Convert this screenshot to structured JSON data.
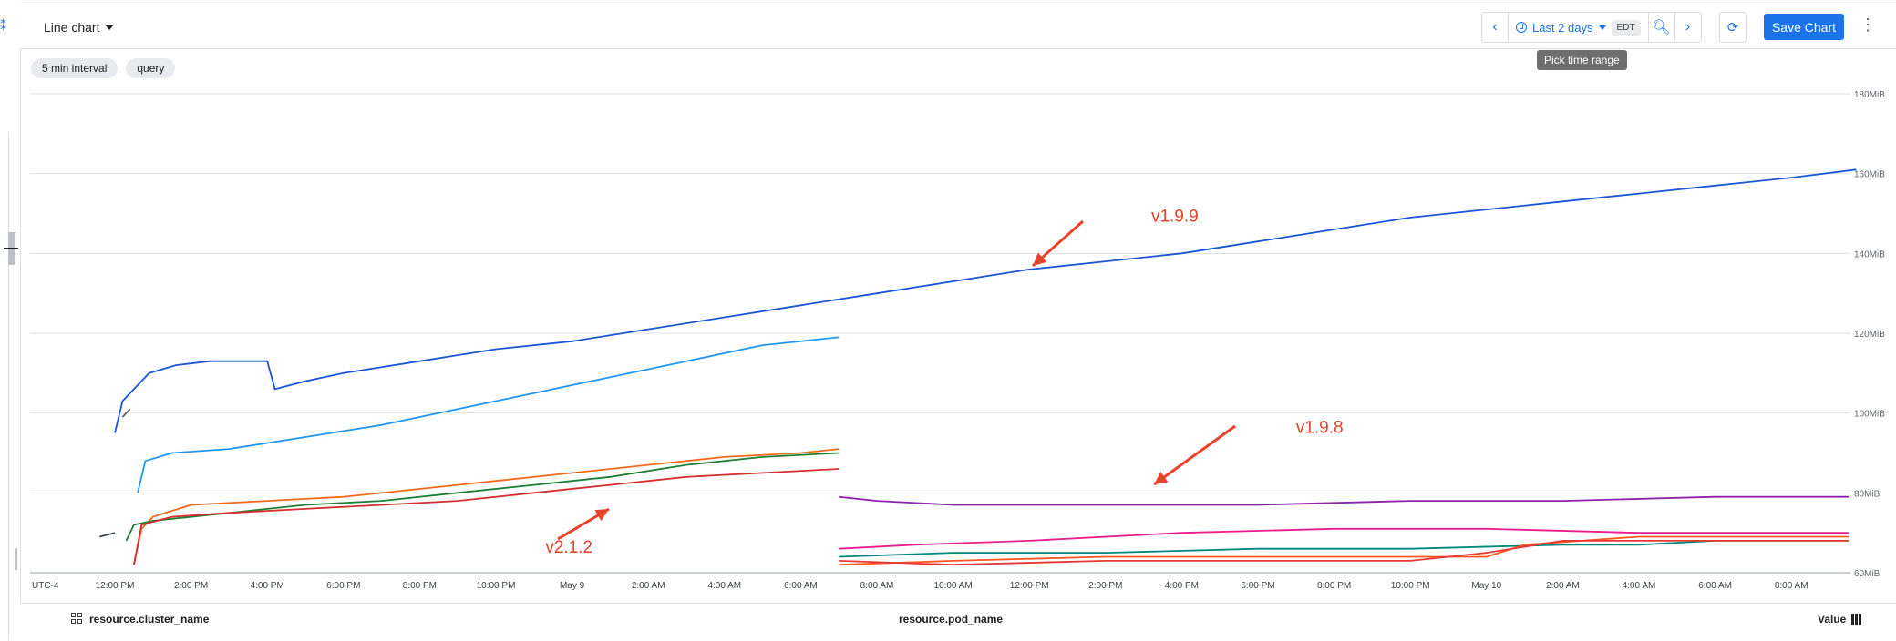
{
  "toolbar": {
    "chart_type": "Line chart",
    "time_range": "Last 2 days",
    "timezone": "EDT",
    "save_label": "Save Chart",
    "tooltip": "Pick time range"
  },
  "chips": [
    "5 min interval",
    "query"
  ],
  "footer": {
    "col1": "resource.cluster_name",
    "col2": "resource.pod_name",
    "col3": "Value"
  },
  "chart_data": {
    "type": "line",
    "x_axis_labels": [
      "UTC-4",
      "12:00 PM",
      "2:00 PM",
      "4:00 PM",
      "6:00 PM",
      "8:00 PM",
      "10:00 PM",
      "May 9",
      "2:00 AM",
      "4:00 AM",
      "6:00 AM",
      "8:00 AM",
      "10:00 AM",
      "12:00 PM",
      "2:00 PM",
      "4:00 PM",
      "6:00 PM",
      "8:00 PM",
      "10:00 PM",
      "May 10",
      "2:00 AM",
      "4:00 AM",
      "6:00 AM",
      "8:00 AM"
    ],
    "y_ticks": [
      "60MiB",
      "80MiB",
      "100MiB",
      "120MiB",
      "140MiB",
      "160MiB",
      "180MiB"
    ],
    "y_unit": "MiB",
    "ylim": [
      60,
      180
    ],
    "x_hours_range": [
      -0.7,
      45.8
    ],
    "grid": true,
    "series": [
      {
        "color": "#1a56d6",
        "points": [
          [
            0,
            95
          ],
          [
            0.2,
            103
          ],
          [
            0.5,
            106
          ],
          [
            0.9,
            110
          ],
          [
            1.6,
            112
          ],
          [
            2.5,
            113
          ],
          [
            3.5,
            113
          ],
          [
            4.0,
            113
          ],
          [
            4.2,
            106
          ],
          [
            5,
            108
          ],
          [
            6,
            110
          ],
          [
            8,
            113
          ],
          [
            10,
            116
          ],
          [
            12,
            118
          ],
          [
            14,
            121
          ],
          [
            16,
            124
          ],
          [
            18,
            127
          ],
          [
            20,
            130
          ],
          [
            22,
            133
          ],
          [
            24,
            136
          ],
          [
            26,
            138
          ],
          [
            28,
            140
          ],
          [
            30,
            143
          ],
          [
            32,
            146
          ],
          [
            34,
            149
          ],
          [
            36,
            151
          ],
          [
            38,
            153
          ],
          [
            40,
            155
          ],
          [
            42,
            157
          ],
          [
            44,
            159
          ],
          [
            45.7,
            161
          ]
        ]
      },
      {
        "color": "#2196f3",
        "points": [
          [
            0.6,
            80
          ],
          [
            0.8,
            88
          ],
          [
            1.5,
            90
          ],
          [
            3,
            91
          ],
          [
            5,
            94
          ],
          [
            7,
            97
          ],
          [
            9,
            101
          ],
          [
            11,
            105
          ],
          [
            13,
            109
          ],
          [
            15,
            113
          ],
          [
            17,
            117
          ],
          [
            19,
            119
          ]
        ]
      },
      {
        "color": "#f26b1d",
        "points": [
          [
            0.5,
            62
          ],
          [
            0.7,
            71
          ],
          [
            1,
            74
          ],
          [
            2,
            77
          ],
          [
            4,
            78
          ],
          [
            6,
            79
          ],
          [
            8,
            81
          ],
          [
            10,
            83
          ],
          [
            12,
            85
          ],
          [
            14,
            87
          ],
          [
            16,
            89
          ],
          [
            18,
            90
          ],
          [
            19,
            91
          ]
        ]
      },
      {
        "color": "#1e7e34",
        "points": [
          [
            0.3,
            68
          ],
          [
            0.5,
            72
          ],
          [
            1,
            73
          ],
          [
            3,
            75
          ],
          [
            5,
            77
          ],
          [
            7,
            78
          ],
          [
            9,
            80
          ],
          [
            11,
            82
          ],
          [
            13,
            84
          ],
          [
            15,
            87
          ],
          [
            17,
            89
          ],
          [
            19,
            90
          ]
        ]
      },
      {
        "color": "#d32f2f",
        "points": [
          [
            0.5,
            62
          ],
          [
            0.7,
            72
          ],
          [
            1.5,
            74
          ],
          [
            3,
            75
          ],
          [
            5,
            76
          ],
          [
            7,
            77
          ],
          [
            9,
            78
          ],
          [
            11,
            80
          ],
          [
            13,
            82
          ],
          [
            15,
            84
          ],
          [
            17,
            85
          ],
          [
            19,
            86
          ]
        ]
      },
      {
        "color": "#8e24aa",
        "points": [
          [
            19,
            79
          ],
          [
            20,
            78
          ],
          [
            22,
            77
          ],
          [
            26,
            77
          ],
          [
            30,
            77
          ],
          [
            34,
            78
          ],
          [
            38,
            78
          ],
          [
            42,
            79
          ],
          [
            45.5,
            79
          ]
        ]
      },
      {
        "color": "#e91e8c",
        "points": [
          [
            19,
            66
          ],
          [
            21,
            67
          ],
          [
            24,
            68
          ],
          [
            28,
            70
          ],
          [
            32,
            71
          ],
          [
            36,
            71
          ],
          [
            40,
            70
          ],
          [
            43,
            70
          ],
          [
            45.5,
            70
          ]
        ]
      },
      {
        "color": "#00897b",
        "points": [
          [
            19,
            64
          ],
          [
            22,
            65
          ],
          [
            26,
            65
          ],
          [
            30,
            66
          ],
          [
            34,
            66
          ],
          [
            38,
            67
          ],
          [
            40,
            67
          ],
          [
            42,
            68
          ],
          [
            45.5,
            68
          ]
        ]
      },
      {
        "color": "#ff5722",
        "points": [
          [
            19,
            62
          ],
          [
            22,
            63
          ],
          [
            26,
            64
          ],
          [
            30,
            64
          ],
          [
            34,
            64
          ],
          [
            36,
            64
          ],
          [
            37,
            67
          ],
          [
            40,
            69
          ],
          [
            42,
            69
          ],
          [
            45.5,
            69
          ]
        ]
      },
      {
        "color": "#e53935",
        "points": [
          [
            19,
            63
          ],
          [
            22,
            62
          ],
          [
            26,
            63
          ],
          [
            30,
            63
          ],
          [
            34,
            63
          ],
          [
            36,
            65
          ],
          [
            38,
            68
          ],
          [
            42,
            68
          ],
          [
            45.5,
            68
          ]
        ]
      },
      {
        "color": "#37474f",
        "points": [
          [
            -0.4,
            69
          ],
          [
            0,
            70
          ]
        ]
      },
      {
        "color": "#5f6368",
        "points": [
          [
            0.2,
            99
          ],
          [
            0.4,
            101
          ]
        ]
      }
    ],
    "annotations": [
      {
        "text": "v1.9.9",
        "x": 27.2,
        "y": 148
      },
      {
        "text": "v1.9.8",
        "x": 31.0,
        "y": 95
      },
      {
        "text": "v2.1.2",
        "x": 11.3,
        "y": 65
      }
    ]
  }
}
